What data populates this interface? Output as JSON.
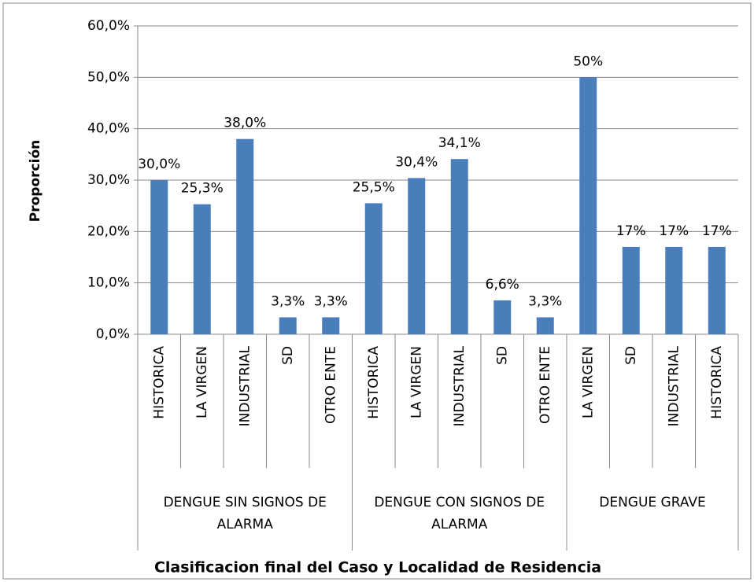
{
  "chart_data": {
    "type": "bar",
    "y_axis_label": "Proporción",
    "x_axis_label": "Clasificacion final del Caso y Localidad de Residencia",
    "groups": [
      {
        "label": "DENGUE SIN SIGNOS DE ALARMA",
        "categories": [
          "HISTORICA",
          "LA VIRGEN",
          "INDUSTRIAL",
          "SD",
          "OTRO ENTE"
        ]
      },
      {
        "label": "DENGUE CON SIGNOS DE ALARMA",
        "categories": [
          "HISTORICA",
          "LA VIRGEN",
          "INDUSTRIAL",
          "SD",
          "OTRO ENTE"
        ]
      },
      {
        "label": "DENGUE GRAVE",
        "categories": [
          "LA VIRGEN",
          "SD",
          "INDUSTRIAL",
          "HISTORICA"
        ]
      }
    ],
    "values": [
      30.0,
      25.3,
      38.0,
      3.3,
      3.3,
      25.5,
      30.4,
      34.1,
      6.6,
      3.3,
      50,
      17,
      17,
      17
    ],
    "value_labels": [
      "30,0%",
      "25,3%",
      "38,0%",
      "3,3%",
      "3,3%",
      "25,5%",
      "30,4%",
      "34,1%",
      "6,6%",
      "3,3%",
      "50%",
      "17%",
      "17%",
      "17%"
    ],
    "color": "#4a7ebb",
    "ylim": [
      0,
      60
    ],
    "yticks": [
      {
        "value": 0,
        "label": "0,0%"
      },
      {
        "value": 10,
        "label": "10,0%"
      },
      {
        "value": 20,
        "label": "20,0%"
      },
      {
        "value": 30,
        "label": "30,0%"
      },
      {
        "value": 40,
        "label": "40,0%"
      },
      {
        "value": 50,
        "label": "50,0%"
      },
      {
        "value": 60,
        "label": "60,0%"
      }
    ],
    "grid": true
  }
}
